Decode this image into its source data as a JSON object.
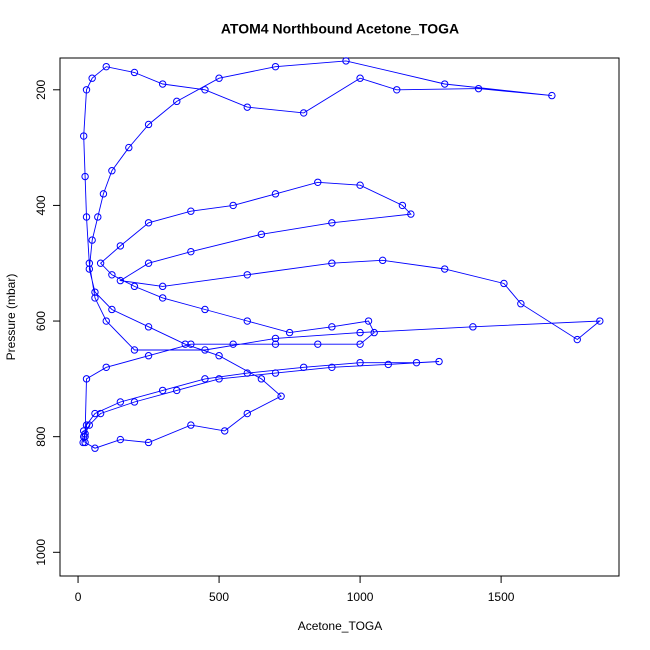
{
  "chart_data": {
    "type": "line",
    "title": "ATOM4 Northbound Acetone_TOGA",
    "x_label": "Acetone_TOGA",
    "y_label": "Pressure (mbar)",
    "color": "#0000ff",
    "markers": true,
    "xlim": [
      -64,
      1918
    ],
    "ylim": [
      1041,
      145
    ],
    "xticks": [
      0,
      500,
      1000,
      1500
    ],
    "yticks": [
      200,
      400,
      600,
      800,
      1000
    ],
    "x": [
      20,
      25,
      18,
      30,
      60,
      150,
      300,
      450,
      600,
      800,
      1000,
      1200,
      1280,
      1100,
      900,
      700,
      500,
      350,
      200,
      80,
      40,
      25,
      30,
      100,
      250,
      400,
      550,
      700,
      850,
      1000,
      1050,
      1030,
      900,
      750,
      600,
      450,
      300,
      200,
      120,
      80,
      150,
      250,
      400,
      550,
      700,
      850,
      1000,
      1150,
      1180,
      900,
      650,
      400,
      250,
      150,
      300,
      600,
      900,
      1080,
      1300,
      1510,
      1570,
      1770,
      1850,
      1400,
      1000,
      700,
      450,
      200,
      100,
      60,
      40,
      30,
      25,
      20,
      30,
      50,
      100,
      200,
      300,
      450,
      600,
      800,
      1000,
      1130,
      1420,
      1680,
      1300,
      950,
      700,
      500,
      350,
      250,
      180,
      120,
      90,
      70,
      50,
      40,
      60,
      120,
      250,
      380,
      500,
      650,
      720,
      600,
      520,
      400,
      250,
      150,
      60,
      25,
      20
    ],
    "values": [
      790,
      800,
      810,
      780,
      760,
      740,
      720,
      700,
      690,
      680,
      672,
      672,
      670,
      675,
      680,
      690,
      700,
      720,
      740,
      760,
      780,
      795,
      700,
      680,
      660,
      640,
      640,
      640,
      640,
      640,
      620,
      600,
      610,
      620,
      600,
      580,
      560,
      540,
      520,
      500,
      470,
      430,
      410,
      400,
      380,
      360,
      365,
      400,
      415,
      430,
      450,
      480,
      500,
      530,
      540,
      520,
      500,
      495,
      510,
      535,
      570,
      632,
      600,
      610,
      620,
      630,
      650,
      650,
      600,
      560,
      500,
      420,
      350,
      280,
      200,
      180,
      160,
      170,
      190,
      200,
      230,
      240,
      180,
      200,
      198,
      210,
      190,
      150,
      160,
      180,
      220,
      260,
      300,
      340,
      380,
      420,
      460,
      510,
      550,
      580,
      610,
      640,
      660,
      700,
      730,
      760,
      790,
      780,
      810,
      805,
      820,
      810,
      800
    ]
  }
}
